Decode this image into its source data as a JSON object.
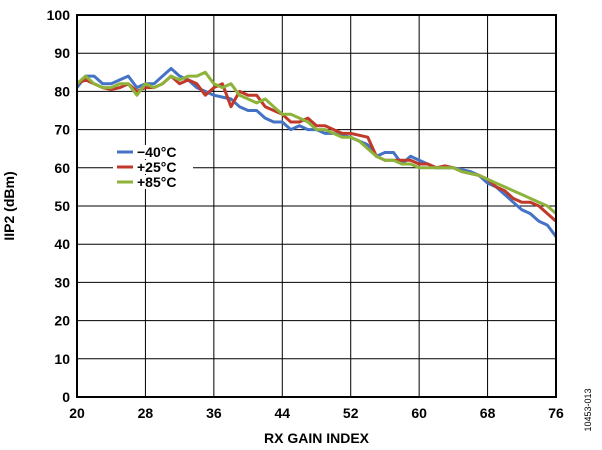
{
  "chart_data": {
    "type": "line",
    "title": "",
    "xlabel": "RX GAIN INDEX",
    "ylabel": "IIP2 (dBm)",
    "xlim": [
      20,
      76
    ],
    "ylim": [
      0,
      100
    ],
    "xticks": [
      "20",
      "28",
      "36",
      "44",
      "52",
      "60",
      "68",
      "76"
    ],
    "yticks": [
      "0",
      "10",
      "20",
      "30",
      "40",
      "50",
      "60",
      "70",
      "80",
      "90",
      "100"
    ],
    "grid": true,
    "legend_position": "left-middle",
    "figure_id": "10453-013",
    "series": [
      {
        "name": "−40°C",
        "color": "#4472c4",
        "points": [
          [
            20,
            81
          ],
          [
            21,
            84
          ],
          [
            22,
            84
          ],
          [
            23,
            82
          ],
          [
            24,
            82
          ],
          [
            25,
            83
          ],
          [
            26,
            84
          ],
          [
            27,
            81
          ],
          [
            28,
            82
          ],
          [
            29,
            82
          ],
          [
            30,
            84
          ],
          [
            31,
            86
          ],
          [
            32,
            84
          ],
          [
            33,
            83
          ],
          [
            34,
            81
          ],
          [
            35,
            80
          ],
          [
            36,
            79
          ],
          [
            37,
            78.5
          ],
          [
            38,
            78
          ],
          [
            39,
            76
          ],
          [
            40,
            75
          ],
          [
            41,
            75
          ],
          [
            42,
            73
          ],
          [
            43,
            72
          ],
          [
            44,
            72
          ],
          [
            45,
            70
          ],
          [
            46,
            71
          ],
          [
            47,
            70
          ],
          [
            48,
            70
          ],
          [
            49,
            69
          ],
          [
            50,
            69
          ],
          [
            51,
            68.5
          ],
          [
            52,
            68
          ],
          [
            53,
            67
          ],
          [
            54,
            66
          ],
          [
            55,
            63
          ],
          [
            56,
            64
          ],
          [
            57,
            64
          ],
          [
            58,
            61
          ],
          [
            59,
            63
          ],
          [
            60,
            62
          ],
          [
            61,
            61
          ],
          [
            62,
            60
          ],
          [
            63,
            60
          ],
          [
            64,
            60
          ],
          [
            65,
            59.5
          ],
          [
            66,
            59
          ],
          [
            67,
            58
          ],
          [
            68,
            56
          ],
          [
            69,
            55
          ],
          [
            70,
            53
          ],
          [
            71,
            51
          ],
          [
            72,
            49
          ],
          [
            73,
            48
          ],
          [
            74,
            46
          ],
          [
            75,
            45
          ],
          [
            76,
            42
          ]
        ]
      },
      {
        "name": "+25°C",
        "color": "#c0392b",
        "points": [
          [
            20,
            82
          ],
          [
            21,
            83
          ],
          [
            22,
            82
          ],
          [
            23,
            81
          ],
          [
            24,
            80.5
          ],
          [
            25,
            81
          ],
          [
            26,
            82
          ],
          [
            27,
            80
          ],
          [
            28,
            81
          ],
          [
            29,
            81
          ],
          [
            30,
            82
          ],
          [
            31,
            84
          ],
          [
            32,
            82
          ],
          [
            33,
            83
          ],
          [
            34,
            82
          ],
          [
            35,
            79
          ],
          [
            36,
            81
          ],
          [
            37,
            82
          ],
          [
            38,
            76
          ],
          [
            39,
            80
          ],
          [
            40,
            79
          ],
          [
            41,
            79
          ],
          [
            42,
            76
          ],
          [
            43,
            75
          ],
          [
            44,
            74
          ],
          [
            45,
            72
          ],
          [
            46,
            72
          ],
          [
            47,
            73
          ],
          [
            48,
            71
          ],
          [
            49,
            71
          ],
          [
            50,
            70
          ],
          [
            51,
            69
          ],
          [
            52,
            69
          ],
          [
            53,
            68.5
          ],
          [
            54,
            68
          ],
          [
            55,
            63
          ],
          [
            56,
            62
          ],
          [
            57,
            62
          ],
          [
            58,
            62
          ],
          [
            59,
            62
          ],
          [
            60,
            61
          ],
          [
            61,
            61
          ],
          [
            62,
            60
          ],
          [
            63,
            60.5
          ],
          [
            64,
            60
          ],
          [
            65,
            59
          ],
          [
            66,
            58.5
          ],
          [
            67,
            58
          ],
          [
            68,
            57
          ],
          [
            69,
            55
          ],
          [
            70,
            54
          ],
          [
            71,
            52
          ],
          [
            72,
            51
          ],
          [
            73,
            51
          ],
          [
            74,
            50
          ],
          [
            75,
            48
          ],
          [
            76,
            46
          ]
        ]
      },
      {
        "name": "+85°C",
        "color": "#8db33a",
        "points": [
          [
            20,
            82
          ],
          [
            21,
            84
          ],
          [
            22,
            82
          ],
          [
            23,
            81
          ],
          [
            24,
            81
          ],
          [
            25,
            82
          ],
          [
            26,
            82
          ],
          [
            27,
            79
          ],
          [
            28,
            82
          ],
          [
            29,
            81
          ],
          [
            30,
            82
          ],
          [
            31,
            84
          ],
          [
            32,
            83
          ],
          [
            33,
            84
          ],
          [
            34,
            84
          ],
          [
            35,
            85
          ],
          [
            36,
            82
          ],
          [
            37,
            81
          ],
          [
            38,
            82
          ],
          [
            39,
            79
          ],
          [
            40,
            78
          ],
          [
            41,
            77
          ],
          [
            42,
            78
          ],
          [
            43,
            76
          ],
          [
            44,
            74
          ],
          [
            45,
            74
          ],
          [
            46,
            73
          ],
          [
            47,
            72
          ],
          [
            48,
            70
          ],
          [
            49,
            70
          ],
          [
            50,
            69
          ],
          [
            51,
            68
          ],
          [
            52,
            68
          ],
          [
            53,
            67
          ],
          [
            54,
            65
          ],
          [
            55,
            63
          ],
          [
            56,
            62
          ],
          [
            57,
            62
          ],
          [
            58,
            61
          ],
          [
            59,
            61
          ],
          [
            60,
            60
          ],
          [
            61,
            60
          ],
          [
            62,
            60
          ],
          [
            63,
            60
          ],
          [
            64,
            60
          ],
          [
            65,
            59
          ],
          [
            66,
            58.5
          ],
          [
            67,
            58
          ],
          [
            68,
            57
          ],
          [
            69,
            56
          ],
          [
            70,
            55
          ],
          [
            71,
            54
          ],
          [
            72,
            53
          ],
          [
            73,
            52
          ],
          [
            74,
            51
          ],
          [
            75,
            50
          ],
          [
            76,
            48
          ]
        ]
      }
    ]
  }
}
